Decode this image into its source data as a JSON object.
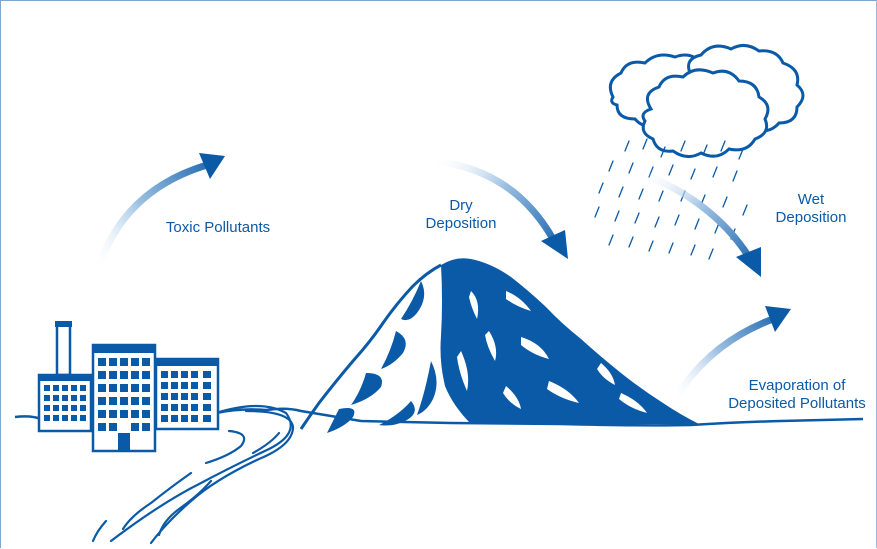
{
  "colors": {
    "primary_blue": "#0b5aa7",
    "light_blue": "#cfe0f1",
    "frame_border": "#7fa6cf",
    "background": "#ffffff"
  },
  "labels": {
    "toxic_pollutants": "Toxic Pollutants",
    "dry_deposition_line1": "Dry",
    "dry_deposition_line2": "Deposition",
    "wet_deposition_line1": "Wet",
    "wet_deposition_line2": "Deposition",
    "evaporation_line1": "Evaporation of",
    "evaporation_line2": "Deposited Pollutants"
  },
  "icons": [
    "factory-icon",
    "mountain-icon",
    "cloud-icon",
    "rain-icon",
    "river-icon",
    "arrow-icon"
  ]
}
